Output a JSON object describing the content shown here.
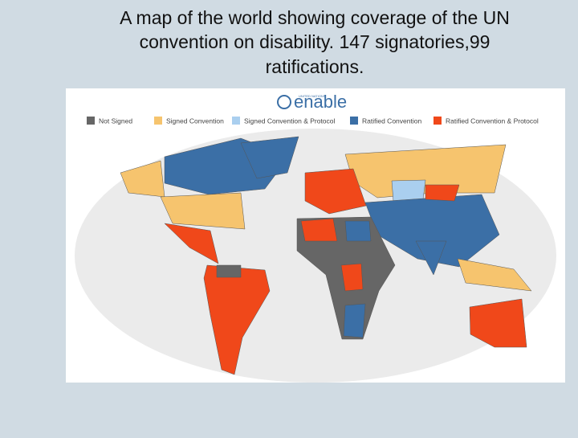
{
  "title_lines": [
    "A map of the world showing coverage of the UN",
    "convention on disability. 147 signatories,99",
    "ratifications."
  ],
  "logo": {
    "org": "UNITED NATIONS",
    "name": "enable"
  },
  "legend": [
    {
      "label": "Not Signed",
      "color": "#666666"
    },
    {
      "label": "Signed Convention",
      "color": "#f6c46e"
    },
    {
      "label": "Signed Convention & Protocol",
      "color": "#aacfef"
    },
    {
      "label": "Ratified Convention",
      "color": "#3b6fa6"
    },
    {
      "label": "Ratified Convention & Protocol",
      "color": "#f0481a"
    }
  ]
}
